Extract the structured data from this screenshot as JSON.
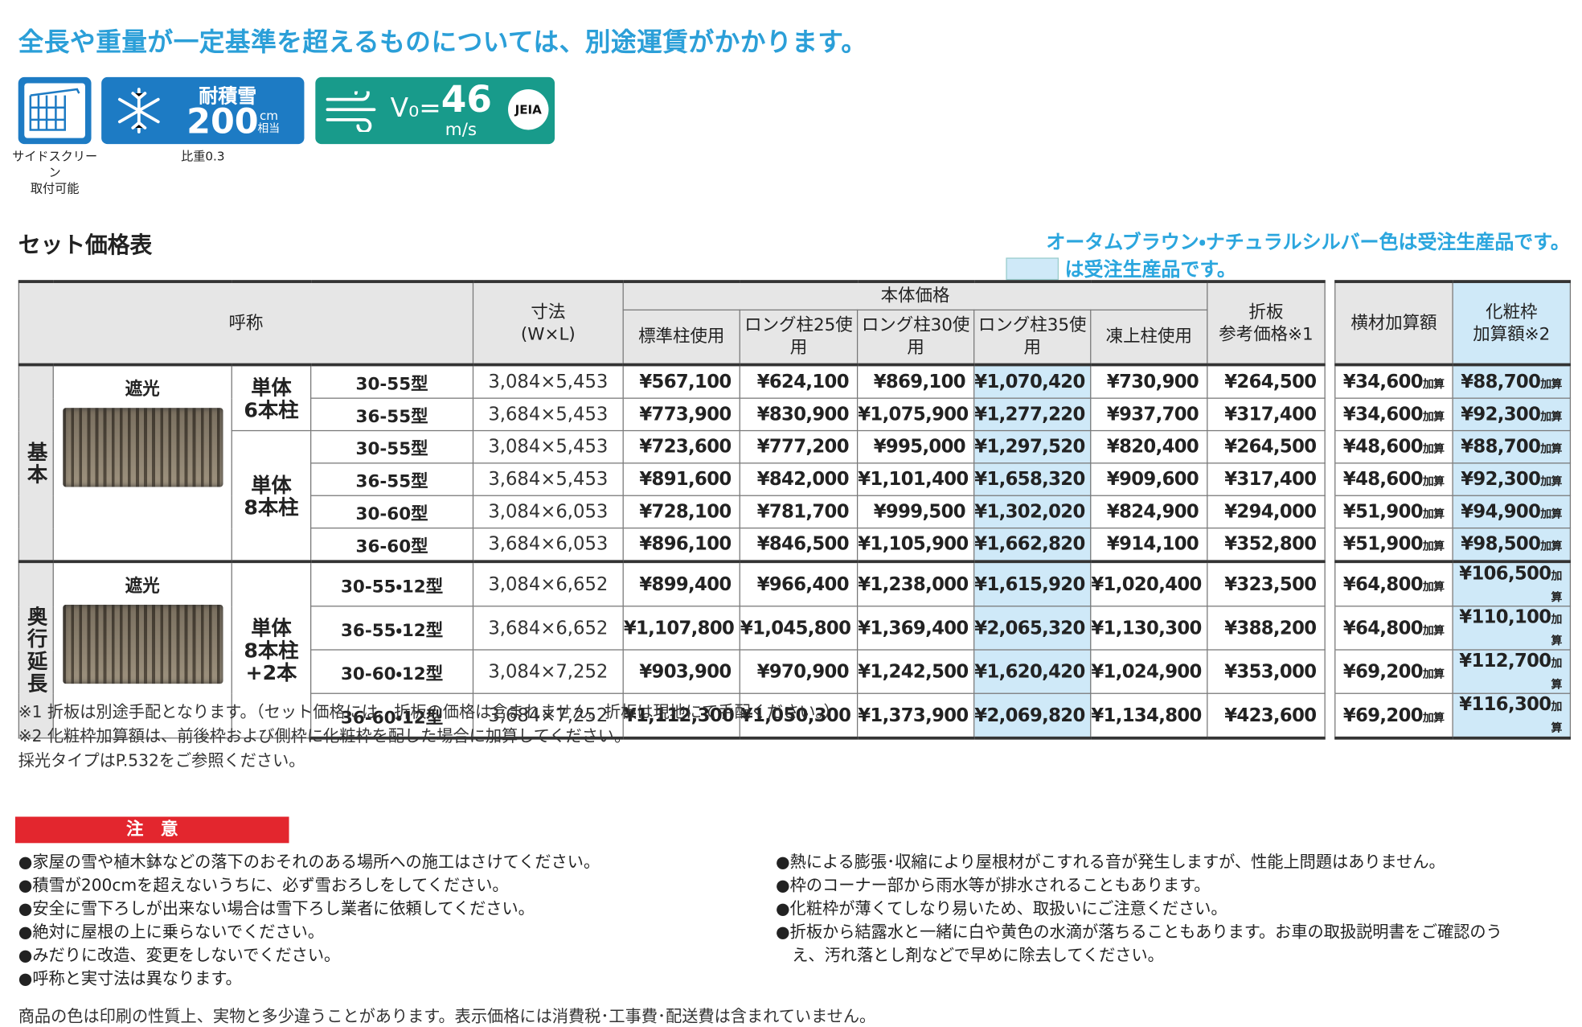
{
  "header": {
    "title": "全長や重量が一定基準を超えるものについては、別途運賃がかかります。"
  },
  "badges": {
    "side_screen": "サイドスクリーン\n取付可能",
    "snow_label": "耐積雪",
    "snow_value": "200",
    "snow_unit": "cm",
    "snow_note": "相当",
    "snow_caption": "比重0.3",
    "wind_prefix": "V₀=",
    "wind_value": "46",
    "wind_unit": "m/s",
    "wind_cert": "JEIA"
  },
  "section": {
    "title": "セット価格表",
    "notice": "オータムブラウン・ナチュラルシルバー色は受注生産品です。",
    "legend": "は受注生産品です。"
  },
  "table": {
    "columns": {
      "name": "呼称",
      "size": "寸法\n(W×L)",
      "body_price": "本体価格",
      "prices": [
        "標準柱使用",
        "ロング柱25使用",
        "ロング柱30使用",
        "ロング柱35使用",
        "凍上柱使用"
      ],
      "folding": "折板\n参考価格※1",
      "horizontal": "横材加算額",
      "cosmetic": "化粧枠\n加算額※2"
    },
    "groups": [
      {
        "label": "基本",
        "image_label": "遮光",
        "subgroups": [
          {
            "label": "単体\n6本柱",
            "rows": [
              {
                "name": "30-55型",
                "size": "3,084×5,453",
                "prices": [
                  "¥567,100",
                  "¥624,100",
                  "¥869,100",
                  "¥1,070,420",
                  "¥730,900"
                ],
                "folding": "¥264,500",
                "horizontal": "¥34,600",
                "horizontal_unit": "加算",
                "cosmetic": "¥88,700",
                "cosmetic_unit": "加算"
              },
              {
                "name": "36-55型",
                "size": "3,684×5,453",
                "prices": [
                  "¥773,900",
                  "¥830,900",
                  "¥1,075,900",
                  "¥1,277,220",
                  "¥937,700"
                ],
                "folding": "¥317,400",
                "horizontal": "¥34,600",
                "horizontal_unit": "加算",
                "cosmetic": "¥92,300",
                "cosmetic_unit": "加算"
              }
            ]
          },
          {
            "label": "単体\n8本柱",
            "rows": [
              {
                "name": "30-55型",
                "size": "3,084×5,453",
                "prices": [
                  "¥723,600",
                  "¥777,200",
                  "¥995,000",
                  "¥1,297,520",
                  "¥820,400"
                ],
                "folding": "¥264,500",
                "horizontal": "¥48,600",
                "horizontal_unit": "加算",
                "cosmetic": "¥88,700",
                "cosmetic_unit": "加算"
              },
              {
                "name": "36-55型",
                "size": "3,684×5,453",
                "prices": [
                  "¥891,600",
                  "¥842,000",
                  "¥1,101,400",
                  "¥1,658,320",
                  "¥909,600"
                ],
                "folding": "¥317,400",
                "horizontal": "¥48,600",
                "horizontal_unit": "加算",
                "cosmetic": "¥92,300",
                "cosmetic_unit": "加算"
              },
              {
                "name": "30-60型",
                "size": "3,084×6,053",
                "prices": [
                  "¥728,100",
                  "¥781,700",
                  "¥999,500",
                  "¥1,302,020",
                  "¥824,900"
                ],
                "folding": "¥294,000",
                "horizontal": "¥51,900",
                "horizontal_unit": "加算",
                "cosmetic": "¥94,900",
                "cosmetic_unit": "加算"
              },
              {
                "name": "36-60型",
                "size": "3,684×6,053",
                "prices": [
                  "¥896,100",
                  "¥846,500",
                  "¥1,105,900",
                  "¥1,662,820",
                  "¥914,100"
                ],
                "folding": "¥352,800",
                "horizontal": "¥51,900",
                "horizontal_unit": "加算",
                "cosmetic": "¥98,500",
                "cosmetic_unit": "加算"
              }
            ]
          }
        ]
      },
      {
        "label": "奥行延長",
        "image_label": "遮光",
        "subgroups": [
          {
            "label": "単体\n8本柱\n+2本",
            "rows": [
              {
                "name": "30-55・12型",
                "size": "3,084×6,652",
                "prices": [
                  "¥899,400",
                  "¥966,400",
                  "¥1,238,000",
                  "¥1,615,920",
                  "¥1,020,400"
                ],
                "folding": "¥323,500",
                "horizontal": "¥64,800",
                "horizontal_unit": "加算",
                "cosmetic": "¥106,500",
                "cosmetic_unit": "加算"
              },
              {
                "name": "36-55・12型",
                "size": "3,684×6,652",
                "prices": [
                  "¥1,107,800",
                  "¥1,045,800",
                  "¥1,369,400",
                  "¥2,065,320",
                  "¥1,130,300"
                ],
                "folding": "¥388,200",
                "horizontal": "¥64,800",
                "horizontal_unit": "加算",
                "cosmetic": "¥110,100",
                "cosmetic_unit": "加算"
              },
              {
                "name": "30-60・12型",
                "size": "3,084×7,252",
                "prices": [
                  "¥903,900",
                  "¥970,900",
                  "¥1,242,500",
                  "¥1,620,420",
                  "¥1,024,900"
                ],
                "folding": "¥353,000",
                "horizontal": "¥69,200",
                "horizontal_unit": "加算",
                "cosmetic": "¥112,700",
                "cosmetic_unit": "加算"
              },
              {
                "name": "36-60・12型",
                "size": "3,684×7,252",
                "prices": [
                  "¥1,112,300",
                  "¥1,050,300",
                  "¥1,373,900",
                  "¥2,069,820",
                  "¥1,134,800"
                ],
                "folding": "¥423,600",
                "horizontal": "¥69,200",
                "horizontal_unit": "加算",
                "cosmetic": "¥116,300",
                "cosmetic_unit": "加算"
              }
            ]
          }
        ]
      }
    ]
  },
  "footnotes": [
    "※1 折板は別途手配となります。（セット価格には、折板の価格は含まれません。折板は現地にて手配ください。）",
    "※2 化粧枠加算額は、前後枠および側枠に化粧枠を配した場合に加算してください。",
    "採光タイプはP.532をご参照ください。"
  ],
  "caution": {
    "title": "注　意",
    "left": [
      "●家屋の雪や植木鉢などの落下のおそれのある場所への施工はさけてください。",
      "●積雪が200cmを超えないうちに、必ず雪おろしをしてください。",
      "●安全に雪下ろしが出来ない場合は雪下ろし業者に依頼してください。",
      "●絶対に屋根の上に乗らないでください。",
      "●みだりに改造、変更をしないでください。",
      "●呼称と実寸法は異なります。"
    ],
    "right": [
      "●熱による膨張･収縮により屋根材がこすれる音が発生しますが、性能上問題はありません。",
      "●枠のコーナー部から雨水等が排水されることもあります。",
      "●化粧枠が薄くてしなり易いため、取扱いにご注意ください。",
      "●折板から結露水と一緒に白や黄色の水滴が落ちることもあります。お車の取扱説明書をご確認のうえ、汚れ落とし剤などで早めに除去してください。"
    ]
  },
  "bottom_note": "商品の色は印刷の性質上、実物と多少違うことがあります。表示価格には消費税･工事費･配送費は含まれていません。"
}
